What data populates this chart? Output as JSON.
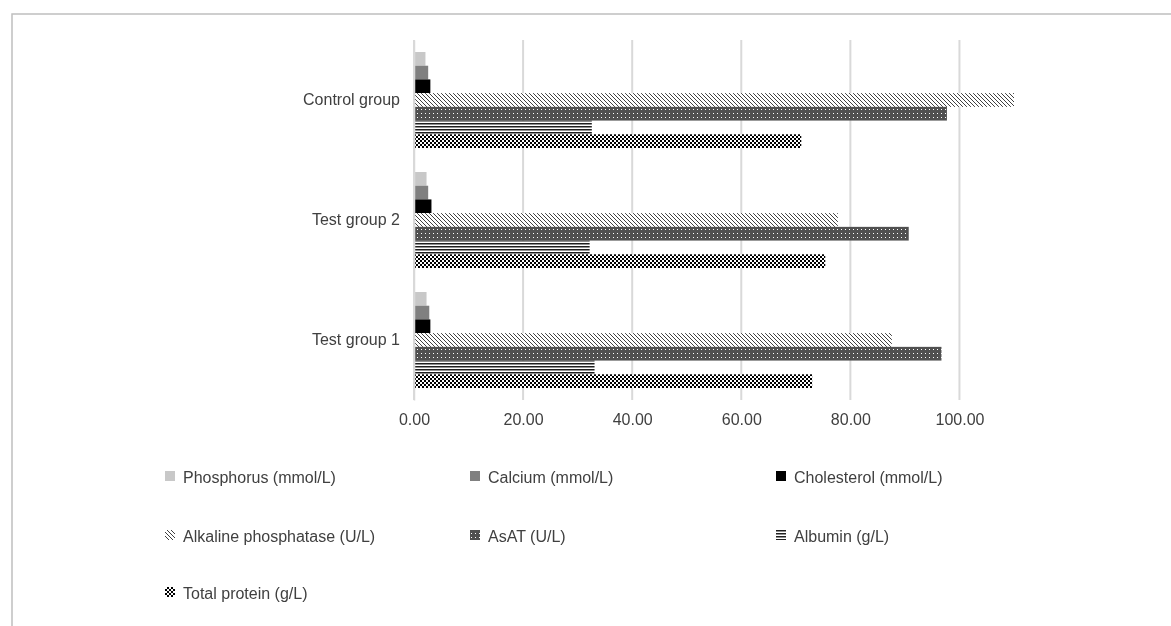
{
  "chart_data": {
    "type": "bar",
    "orientation": "horizontal",
    "categories": [
      "Control group",
      "Test group 2",
      "Test group 1"
    ],
    "series": [
      {
        "name": "Phosphorus (mmol/L)",
        "color": "#c8c8c8",
        "values": [
          2.1,
          2.3,
          2.3
        ]
      },
      {
        "name": "Calcium (mmol/L)",
        "color": "#808080",
        "values": [
          2.6,
          2.6,
          2.8
        ]
      },
      {
        "name": "Cholesterol (mmol/L)",
        "color": "#000000",
        "values": [
          3.0,
          3.2,
          3.0
        ]
      },
      {
        "name": "Alkaline phosphatase (U/L)",
        "color": "#404040",
        "values": [
          110.0,
          77.7,
          87.6
        ]
      },
      {
        "name": "AsAT (U/L)",
        "color": "#505050",
        "values": [
          97.7,
          90.7,
          96.7
        ]
      },
      {
        "name": "Albumin (g/L)",
        "color": "#202020",
        "values": [
          32.6,
          32.2,
          33.1
        ]
      },
      {
        "name": "Total protein (g/L)",
        "color": "#000000",
        "values": [
          71.0,
          75.4,
          73.0
        ]
      }
    ],
    "xlim": [
      0,
      110
    ],
    "xticks": [
      {
        "value": 0,
        "label": "0.00"
      },
      {
        "value": 20,
        "label": "20.00"
      },
      {
        "value": 40,
        "label": "40.00"
      },
      {
        "value": 60,
        "label": "60.00"
      },
      {
        "value": 80,
        "label": "80.00"
      },
      {
        "value": 100,
        "label": "100.00"
      }
    ],
    "grid": "x",
    "legend": "bottom"
  }
}
